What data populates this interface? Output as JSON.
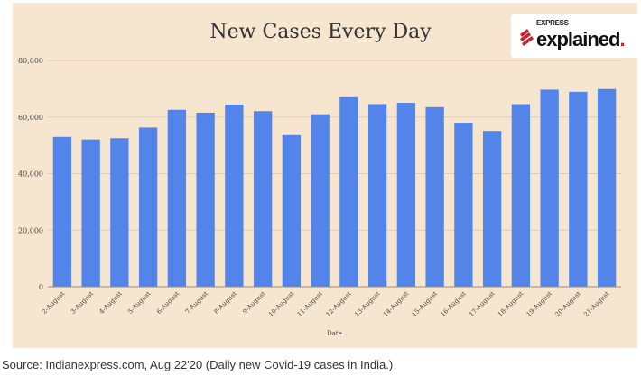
{
  "chart_data": {
    "type": "bar",
    "title": "New Cases Every Day",
    "xlabel": "Date",
    "ylabel": "",
    "ylim": [
      0,
      80000
    ],
    "yticks": [
      0,
      20000,
      40000,
      60000,
      80000
    ],
    "ytick_labels": [
      "0",
      "20,000",
      "40,000",
      "60,000",
      "80,000"
    ],
    "grid": true,
    "categories": [
      "2-August",
      "3-August",
      "4-August",
      "5-August",
      "6-August",
      "7-August",
      "8-August",
      "9-August",
      "10-August",
      "11-August",
      "12-August",
      "13-August",
      "14-August",
      "15-August",
      "16-August",
      "17-August",
      "18-August",
      "19-August",
      "20-August",
      "21-August"
    ],
    "values": [
      52972,
      52050,
      52509,
      56282,
      62538,
      61537,
      64399,
      62064,
      53601,
      60963,
      66999,
      64553,
      65002,
      63490,
      57981,
      55079,
      64531,
      69652,
      68898,
      69878
    ],
    "bar_color": "#5284ea"
  },
  "logo": {
    "top": "EXPRESS",
    "main": "explained",
    "dot": "."
  },
  "source": "Source: Indianexpress.com, Aug 22'20 (Daily new Covid-19 cases in India.)"
}
